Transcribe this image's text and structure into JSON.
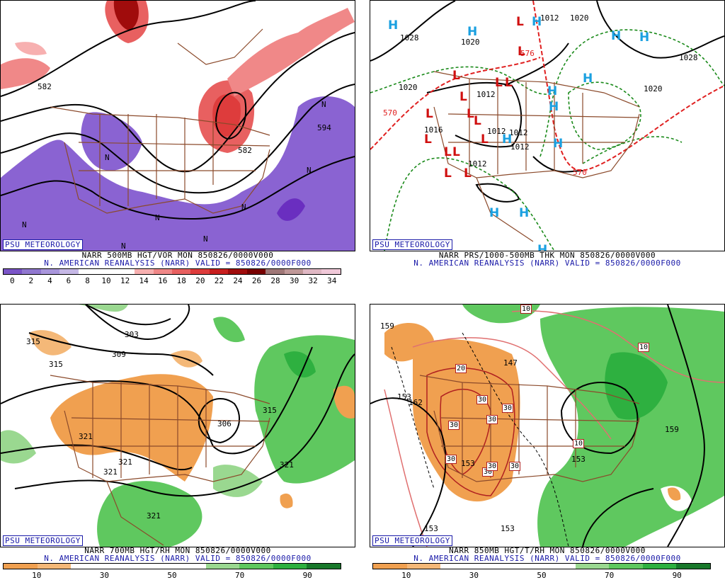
{
  "badge": "PSU METEOROLOGY",
  "panels": [
    {
      "id": "vort",
      "caption1": "NARR 500MB HGT/VOR MON 850826/0000V000",
      "caption2": "N. AMERICAN REANALYSIS (NARR) VALID = 850826/0000F000",
      "colorbar": {
        "ticks": [
          "0",
          "2",
          "4",
          "6",
          "8",
          "10",
          "12",
          "14",
          "16",
          "18",
          "20",
          "22",
          "24",
          "26",
          "28",
          "30",
          "32",
          "34"
        ],
        "colors": [
          "#7b55c8",
          "#9178d0",
          "#a996dc",
          "#c6b8e6",
          "#ffffff",
          "#ffffff",
          "#ffffff",
          "#f7b0b0",
          "#f08888",
          "#e86060",
          "#de3c3c",
          "#c81e1e",
          "#a00c0c",
          "#780000",
          "#a07878",
          "#c09898",
          "#e0b8c4",
          "#f0c8d8"
        ]
      },
      "labels": [
        "582",
        "594",
        "582",
        "N",
        "N",
        "N",
        "N",
        "N",
        "N",
        "N",
        "N"
      ]
    },
    {
      "id": "mslp",
      "caption1": "NARR PRS/1000-500MB THK MON 850826/0000V000",
      "caption2": "N. AMERICAN REANALYSIS (NARR) VALID = 850826/0000F000",
      "labels": [
        "1028",
        "1020",
        "1020",
        "1012",
        "1012",
        "1012",
        "1016",
        "1012",
        "1012",
        "1020",
        "1028",
        "1020",
        "1012",
        "570",
        "570",
        "576"
      ],
      "highs": [
        "H",
        "H",
        "H",
        "H",
        "H",
        "H",
        "H",
        "H",
        "H",
        "H",
        "H",
        "H",
        "H"
      ],
      "lows": [
        "L",
        "L",
        "L",
        "L",
        "L",
        "L",
        "L",
        "L",
        "L",
        "L",
        "L",
        "L",
        "L",
        "L",
        "L"
      ]
    },
    {
      "id": "rh700",
      "caption1": "NARR 700MB HGT/RH MON 850826/0000V000",
      "caption2": "N. AMERICAN REANALYSIS (NARR) VALID = 850826/0000F000",
      "colorbar": {
        "ticks": [
          "10",
          "30",
          "50",
          "70",
          "90"
        ],
        "colors": [
          "#f0a050",
          "#f4b878",
          "#ffffff",
          "#ffffff",
          "#ffffff",
          "#ffffff",
          "#9ad890",
          "#5fc85f",
          "#2eb040",
          "#18782a"
        ]
      },
      "labels": [
        "315",
        "315",
        "303",
        "309",
        "321",
        "321",
        "321",
        "306",
        "315",
        "321",
        "321"
      ]
    },
    {
      "id": "t850",
      "caption1": "NARR 850MB HGT/T/RH MON 850826/0000V000",
      "caption2": "N. AMERICAN REANALYSIS (NARR) VALID = 850826/0000F000",
      "colorbar": {
        "ticks": [
          "10",
          "30",
          "50",
          "70",
          "90"
        ],
        "colors": [
          "#f0a050",
          "#f4b878",
          "#ffffff",
          "#ffffff",
          "#ffffff",
          "#ffffff",
          "#9ad890",
          "#5fc85f",
          "#2eb040",
          "#18782a"
        ]
      },
      "labels": [
        "159",
        "153",
        "162",
        "147",
        "153",
        "153",
        "153",
        "159",
        "153"
      ],
      "temps": [
        "10",
        "20",
        "30",
        "30",
        "30",
        "30",
        "30",
        "30",
        "30",
        "30",
        "10",
        "10"
      ]
    }
  ]
}
